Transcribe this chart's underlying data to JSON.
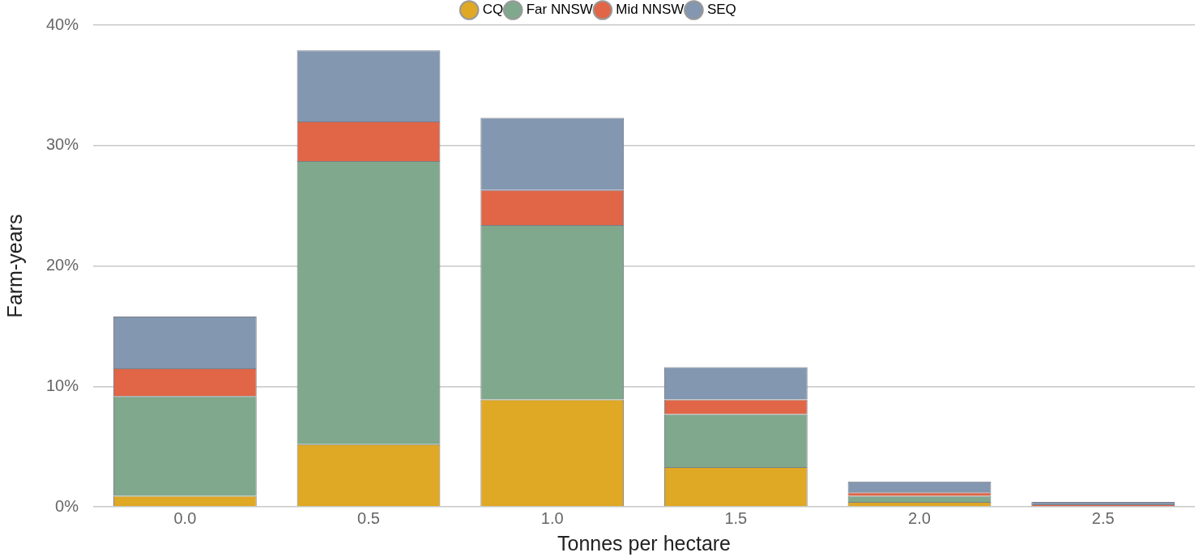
{
  "chart_data": {
    "type": "bar",
    "stacked": true,
    "xlabel": "Tonnes per hectare",
    "ylabel": "Farm-years",
    "categories": [
      "0.0",
      "0.5",
      "1.0",
      "1.5",
      "2.0",
      "2.5"
    ],
    "series": [
      {
        "name": "CQ",
        "color": "#dfa825",
        "values": [
          0.9,
          5.2,
          8.9,
          3.3,
          0.4,
          0
        ]
      },
      {
        "name": "Far NNSW",
        "color": "#80a88c",
        "values": [
          8.3,
          23.5,
          14.5,
          4.4,
          0.5,
          0
        ]
      },
      {
        "name": "Mid NNSW",
        "color": "#e06647",
        "values": [
          2.3,
          3.3,
          2.9,
          1.2,
          0.3,
          0.2
        ]
      },
      {
        "name": "SEQ",
        "color": "#8497b0",
        "values": [
          4.3,
          5.9,
          6.0,
          2.7,
          0.9,
          0.2
        ]
      }
    ],
    "ylim": [
      0,
      40
    ],
    "yticks": [
      {
        "value": 0,
        "label": "0%"
      },
      {
        "value": 10,
        "label": "10%"
      },
      {
        "value": 20,
        "label": "20%"
      },
      {
        "value": 30,
        "label": "30%"
      },
      {
        "value": 40,
        "label": "40%"
      }
    ],
    "grid": "y",
    "legend": "top"
  }
}
